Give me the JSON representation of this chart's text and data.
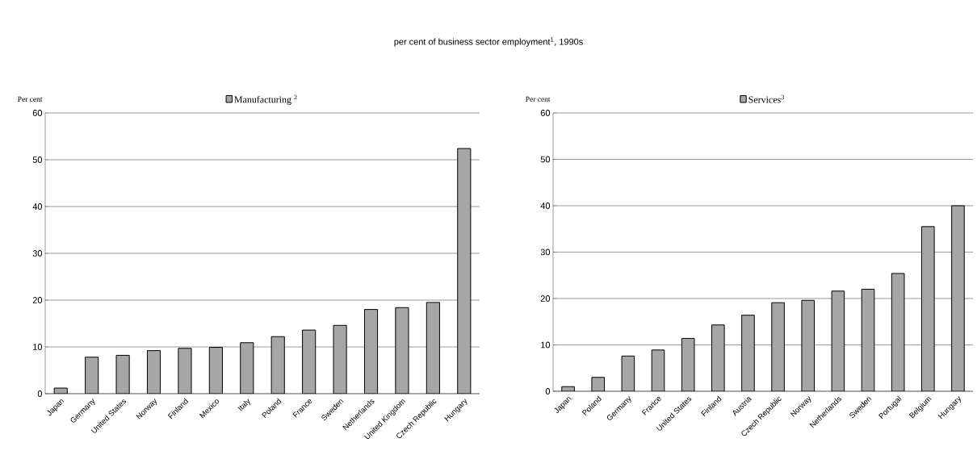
{
  "chart_data": [
    {
      "type": "bar",
      "title": "per cent of business sector employment$^{1}$, 1990s",
      "ylabel": "Per cent",
      "categories": [
        "Japan",
        "Germany",
        "United States",
        "Norway",
        "Finland",
        "Mexico",
        "Italy",
        "Poland",
        "France",
        "Sweden",
        "Netherlands",
        "United Kingdom",
        "Czech Republic",
        "Hungary"
      ],
      "series": [
        {
          "name": "Manufacturing $^{2}$",
          "color": "#a6a6a6",
          "values": [
            1.2,
            7.8,
            8.2,
            9.2,
            9.7,
            9.9,
            10.9,
            12.2,
            13.6,
            14.6,
            18.0,
            18.4,
            19.5,
            52.4
          ]
        }
      ],
      "ylim": [
        0,
        60
      ],
      "yticks": [
        0,
        10,
        20,
        30,
        40,
        50,
        60
      ],
      "grid": "y",
      "legend": "top"
    },
    {
      "type": "bar",
      "ylabel": "Per cent",
      "categories": [
        "Japan",
        "Poland",
        "Germany",
        "France",
        "United States",
        "Finland",
        "Austria",
        "Czech Republic",
        "Norway",
        "Netherlands",
        "Sweden",
        "Portugal",
        "Belgium",
        "Hungary"
      ],
      "series": [
        {
          "name": "Services$^{3}$",
          "color": "#a6a6a6",
          "values": [
            1.0,
            3.0,
            7.6,
            8.9,
            11.4,
            14.3,
            16.4,
            19.1,
            19.6,
            21.6,
            22.0,
            25.4,
            35.5,
            40.0
          ]
        }
      ],
      "ylim": [
        0,
        60
      ],
      "yticks": [
        0,
        10,
        20,
        30,
        40,
        50,
        60
      ],
      "grid": "y",
      "legend": "top"
    }
  ]
}
